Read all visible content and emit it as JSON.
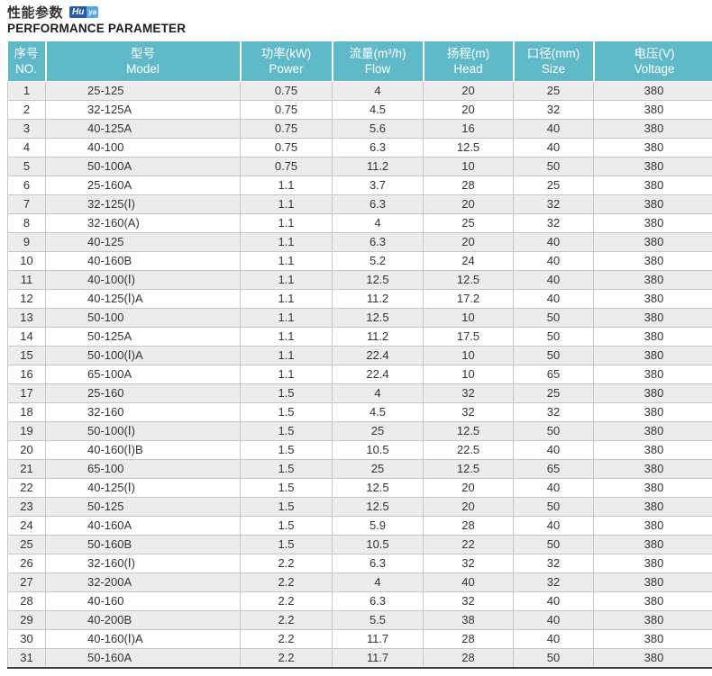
{
  "header": {
    "title_zh": "性能参数",
    "title_en": "PERFORMANCE PARAMETER",
    "logo": {
      "part1": "Hu",
      "part2": "ya"
    }
  },
  "table": {
    "columns": [
      {
        "key": "no",
        "zh": "序号",
        "en": "NO."
      },
      {
        "key": "model",
        "zh": "型号",
        "en": "Model"
      },
      {
        "key": "power",
        "zh": "功率(kW)",
        "en": "Power"
      },
      {
        "key": "flow",
        "zh": "流量(m³/h)",
        "en": "Flow"
      },
      {
        "key": "head",
        "zh": "扬程(m)",
        "en": "Head"
      },
      {
        "key": "size",
        "zh": "口径(mm)",
        "en": "Size"
      },
      {
        "key": "voltage",
        "zh": "电压(V)",
        "en": "Voltage"
      }
    ],
    "rows": [
      {
        "no": "1",
        "model": "25-125",
        "power": "0.75",
        "flow": "4",
        "head": "20",
        "size": "25",
        "voltage": "380"
      },
      {
        "no": "2",
        "model": "32-125A",
        "power": "0.75",
        "flow": "4.5",
        "head": "20",
        "size": "32",
        "voltage": "380"
      },
      {
        "no": "3",
        "model": "40-125A",
        "power": "0.75",
        "flow": "5.6",
        "head": "16",
        "size": "40",
        "voltage": "380"
      },
      {
        "no": "4",
        "model": "40-100",
        "power": "0.75",
        "flow": "6.3",
        "head": "12.5",
        "size": "40",
        "voltage": "380"
      },
      {
        "no": "5",
        "model": "50-100A",
        "power": "0.75",
        "flow": "11.2",
        "head": "10",
        "size": "50",
        "voltage": "380"
      },
      {
        "no": "6",
        "model": "25-160A",
        "power": "1.1",
        "flow": "3.7",
        "head": "28",
        "size": "25",
        "voltage": "380"
      },
      {
        "no": "7",
        "model": "32-125(Ⅰ)",
        "power": "1.1",
        "flow": "6.3",
        "head": "20",
        "size": "32",
        "voltage": "380"
      },
      {
        "no": "8",
        "model": "32-160(A)",
        "power": "1.1",
        "flow": "4",
        "head": "25",
        "size": "32",
        "voltage": "380"
      },
      {
        "no": "9",
        "model": "40-125",
        "power": "1.1",
        "flow": "6.3",
        "head": "20",
        "size": "40",
        "voltage": "380"
      },
      {
        "no": "10",
        "model": "40-160B",
        "power": "1.1",
        "flow": "5.2",
        "head": "24",
        "size": "40",
        "voltage": "380"
      },
      {
        "no": "11",
        "model": "40-100(Ⅰ)",
        "power": "1.1",
        "flow": "12.5",
        "head": "12.5",
        "size": "40",
        "voltage": "380"
      },
      {
        "no": "12",
        "model": "40-125(Ⅰ)A",
        "power": "1.1",
        "flow": "11.2",
        "head": "17.2",
        "size": "40",
        "voltage": "380"
      },
      {
        "no": "13",
        "model": "50-100",
        "power": "1.1",
        "flow": "12.5",
        "head": "10",
        "size": "50",
        "voltage": "380"
      },
      {
        "no": "14",
        "model": "50-125A",
        "power": "1.1",
        "flow": "11.2",
        "head": "17.5",
        "size": "50",
        "voltage": "380"
      },
      {
        "no": "15",
        "model": "50-100(Ⅰ)A",
        "power": "1.1",
        "flow": "22.4",
        "head": "10",
        "size": "50",
        "voltage": "380"
      },
      {
        "no": "16",
        "model": "65-100A",
        "power": "1.1",
        "flow": "22.4",
        "head": "10",
        "size": "65",
        "voltage": "380"
      },
      {
        "no": "17",
        "model": "25-160",
        "power": "1.5",
        "flow": "4",
        "head": "32",
        "size": "25",
        "voltage": "380"
      },
      {
        "no": "18",
        "model": "32-160",
        "power": "1.5",
        "flow": "4.5",
        "head": "32",
        "size": "32",
        "voltage": "380"
      },
      {
        "no": "19",
        "model": "50-100(Ⅰ)",
        "power": "1.5",
        "flow": "25",
        "head": "12.5",
        "size": "50",
        "voltage": "380"
      },
      {
        "no": "20",
        "model": "40-160(Ⅰ)B",
        "power": "1.5",
        "flow": "10.5",
        "head": "22.5",
        "size": "40",
        "voltage": "380"
      },
      {
        "no": "21",
        "model": "65-100",
        "power": "1.5",
        "flow": "25",
        "head": "12.5",
        "size": "65",
        "voltage": "380"
      },
      {
        "no": "22",
        "model": "40-125(Ⅰ)",
        "power": "1.5",
        "flow": "12.5",
        "head": "20",
        "size": "40",
        "voltage": "380"
      },
      {
        "no": "23",
        "model": "50-125",
        "power": "1.5",
        "flow": "12.5",
        "head": "20",
        "size": "50",
        "voltage": "380"
      },
      {
        "no": "24",
        "model": "40-160A",
        "power": "1.5",
        "flow": "5.9",
        "head": "28",
        "size": "40",
        "voltage": "380"
      },
      {
        "no": "25",
        "model": "50-160B",
        "power": "1.5",
        "flow": "10.5",
        "head": "22",
        "size": "50",
        "voltage": "380"
      },
      {
        "no": "26",
        "model": "32-160(Ⅰ)",
        "power": "2.2",
        "flow": "6.3",
        "head": "32",
        "size": "32",
        "voltage": "380"
      },
      {
        "no": "27",
        "model": "32-200A",
        "power": "2.2",
        "flow": "4",
        "head": "40",
        "size": "32",
        "voltage": "380"
      },
      {
        "no": "28",
        "model": "40-160",
        "power": "2.2",
        "flow": "6.3",
        "head": "32",
        "size": "40",
        "voltage": "380"
      },
      {
        "no": "29",
        "model": "40-200B",
        "power": "2.2",
        "flow": "5.5",
        "head": "38",
        "size": "40",
        "voltage": "380"
      },
      {
        "no": "30",
        "model": "40-160(Ⅰ)A",
        "power": "2.2",
        "flow": "11.7",
        "head": "28",
        "size": "40",
        "voltage": "380"
      },
      {
        "no": "31",
        "model": "50-160A",
        "power": "2.2",
        "flow": "11.7",
        "head": "28",
        "size": "50",
        "voltage": "380"
      }
    ]
  },
  "colors": {
    "header_bg": "#5fb9c9",
    "row_stripe": "#ececec",
    "grid_border": "#c6c6c6",
    "bottom_border": "#434343",
    "logo_dark": "#2a5caa",
    "logo_light": "#55a8d8"
  }
}
